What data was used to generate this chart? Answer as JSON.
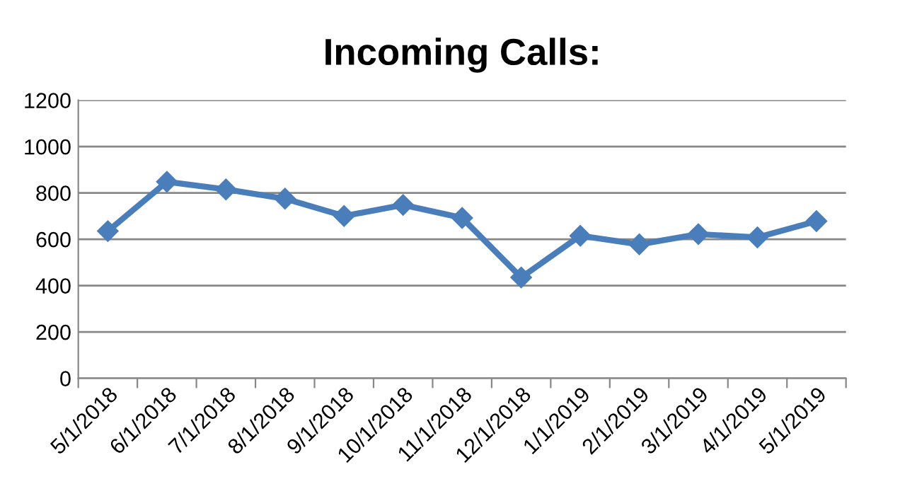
{
  "chart_data": {
    "type": "line",
    "title": "Incoming Calls:",
    "categories": [
      "5/1/2018",
      "6/1/2018",
      "7/1/2018",
      "8/1/2018",
      "9/1/2018",
      "10/1/2018",
      "11/1/2018",
      "12/1/2018",
      "1/1/2019",
      "2/1/2019",
      "3/1/2019",
      "4/1/2019",
      "5/1/2019"
    ],
    "series": [
      {
        "color": "#4a7ebb",
        "values": [
          635,
          848,
          815,
          775,
          700,
          748,
          692,
          435,
          615,
          578,
          622,
          608,
          678
        ]
      }
    ],
    "ylim": [
      0,
      1200
    ],
    "yticks": [
      0,
      200,
      400,
      600,
      800,
      1000,
      1200
    ],
    "grid": "y",
    "marker": "diamond",
    "line_style": "solid"
  }
}
